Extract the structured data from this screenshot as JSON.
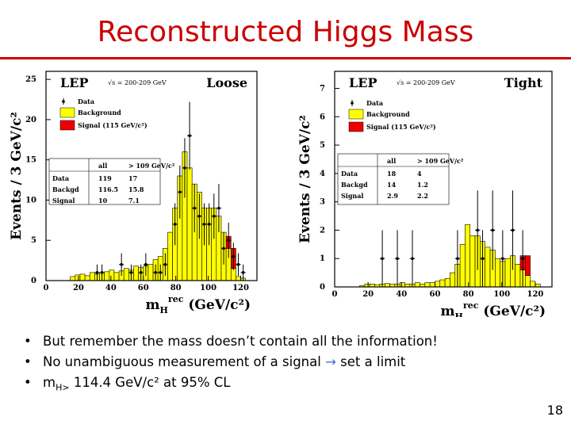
{
  "slide": {
    "title": "Reconstructed Higgs Mass",
    "page_number": "18",
    "colors": {
      "title": "#cc0000",
      "background_fill": "#ffff00",
      "signal_fill": "#ee0000",
      "arrow": "#4a6fd8"
    },
    "bullets": [
      {
        "parts": [
          "But remember the mass doesn’t contain all the information!"
        ]
      },
      {
        "parts": [
          "No unambiguous measurement of a signal ",
          "→",
          " set a limit"
        ]
      },
      {
        "parts": [
          "m",
          "H>",
          " 114.4 GeV/c² at 95% CL"
        ]
      }
    ]
  },
  "chart_data": [
    {
      "type": "histogram",
      "title": "LEP",
      "energy_label": "√s = 200-209 GeV",
      "selection": "Loose",
      "ylabel": "Events / 3 GeV/c²",
      "xlabel_main": "m",
      "xlabel_sub": "H",
      "xlabel_sup": "rec",
      "xlabel_units": "(GeV/c²)",
      "xlim": [
        0,
        130
      ],
      "ylim": [
        0,
        26
      ],
      "xticks": [
        0,
        20,
        40,
        60,
        80,
        100,
        120
      ],
      "yticks": [
        0,
        5,
        10,
        15,
        20,
        25
      ],
      "legend": [
        "Data",
        "Background",
        "Signal (115 GeV/c²)"
      ],
      "bin_width": 3,
      "bin_starts": [
        15,
        18,
        21,
        24,
        27,
        30,
        33,
        36,
        39,
        42,
        45,
        48,
        51,
        54,
        57,
        60,
        63,
        66,
        69,
        72,
        75,
        78,
        81,
        84,
        87,
        90,
        93,
        96,
        99,
        102,
        105,
        108,
        111,
        114,
        117,
        120
      ],
      "background": [
        0.5,
        0.7,
        0.8,
        0.6,
        1.0,
        0.8,
        1.0,
        1.1,
        1.3,
        1.0,
        1.2,
        1.5,
        1.3,
        1.8,
        1.6,
        1.8,
        2.0,
        2.6,
        3.0,
        4.0,
        6.0,
        9.0,
        13.0,
        16.0,
        14.0,
        12.0,
        11.0,
        9.0,
        9.0,
        9.0,
        8.0,
        6.0,
        4.0,
        1.5,
        0.5,
        0.3
      ],
      "signal": [
        0,
        0,
        0,
        0,
        0,
        0,
        0,
        0,
        0,
        0,
        0,
        0,
        0,
        0,
        0,
        0,
        0,
        0,
        0,
        0,
        0,
        0,
        0,
        0,
        0,
        0,
        0,
        0,
        0,
        0,
        0,
        0,
        1.5,
        2.5,
        0,
        0
      ],
      "data_points": [
        {
          "x": 30,
          "y": 1,
          "err": 1
        },
        {
          "x": 33,
          "y": 1,
          "err": 1
        },
        {
          "x": 45,
          "y": 2,
          "err": 1.4
        },
        {
          "x": 51,
          "y": 1,
          "err": 1
        },
        {
          "x": 57,
          "y": 1,
          "err": 1
        },
        {
          "x": 60,
          "y": 2,
          "err": 1.4
        },
        {
          "x": 66,
          "y": 1,
          "err": 1
        },
        {
          "x": 69,
          "y": 1,
          "err": 1
        },
        {
          "x": 72,
          "y": 2,
          "err": 1.4
        },
        {
          "x": 78,
          "y": 7,
          "err": 2.6
        },
        {
          "x": 81,
          "y": 11,
          "err": 3.3
        },
        {
          "x": 84,
          "y": 14,
          "err": 3.7
        },
        {
          "x": 87,
          "y": 18,
          "err": 4.2
        },
        {
          "x": 90,
          "y": 9,
          "err": 3.0
        },
        {
          "x": 93,
          "y": 8,
          "err": 2.8
        },
        {
          "x": 96,
          "y": 7,
          "err": 2.6
        },
        {
          "x": 99,
          "y": 7,
          "err": 2.6
        },
        {
          "x": 102,
          "y": 8,
          "err": 2.8
        },
        {
          "x": 105,
          "y": 9,
          "err": 3.0
        },
        {
          "x": 108,
          "y": 4,
          "err": 2.0
        },
        {
          "x": 111,
          "y": 5,
          "err": 2.2
        },
        {
          "x": 114,
          "y": 3,
          "err": 1.7
        },
        {
          "x": 117,
          "y": 2,
          "err": 1.4
        },
        {
          "x": 120,
          "y": 1,
          "err": 1
        }
      ],
      "table": {
        "headers": [
          "",
          "all",
          "> 109 GeV/c²"
        ],
        "rows": [
          [
            "Data",
            "119",
            "17"
          ],
          [
            "Backgd",
            "116.5",
            "15.8"
          ],
          [
            "Signal",
            "10",
            "7.1"
          ]
        ]
      }
    },
    {
      "type": "histogram",
      "title": "LEP",
      "energy_label": "√s = 200-209 GeV",
      "selection": "Tight",
      "ylabel": "Events / 3 GeV/c²",
      "xlabel_main": "m",
      "xlabel_sub": "H",
      "xlabel_sup": "rec",
      "xlabel_units": "(GeV/c²)",
      "xlim": [
        0,
        130
      ],
      "ylim": [
        0,
        7.6
      ],
      "xticks": [
        0,
        20,
        40,
        60,
        80,
        100,
        120
      ],
      "yticks": [
        0,
        1,
        2,
        3,
        4,
        5,
        6,
        7
      ],
      "legend": [
        "Data",
        "Background",
        "Signal (115 GeV/c²)"
      ],
      "bin_width": 3,
      "bin_starts": [
        15,
        18,
        21,
        24,
        27,
        30,
        33,
        36,
        39,
        42,
        45,
        48,
        51,
        54,
        57,
        60,
        63,
        66,
        69,
        72,
        75,
        78,
        81,
        84,
        87,
        90,
        93,
        96,
        99,
        102,
        105,
        108,
        111,
        114,
        117,
        120
      ],
      "background": [
        0.05,
        0.1,
        0.1,
        0.08,
        0.1,
        0.12,
        0.1,
        0.1,
        0.15,
        0.1,
        0.1,
        0.15,
        0.1,
        0.15,
        0.15,
        0.2,
        0.25,
        0.3,
        0.5,
        0.8,
        1.5,
        2.2,
        1.8,
        1.8,
        1.6,
        1.4,
        1.3,
        1.0,
        0.9,
        1.0,
        1.1,
        0.8,
        0.6,
        0.4,
        0.2,
        0.1
      ],
      "signal": [
        0,
        0,
        0,
        0,
        0,
        0,
        0,
        0,
        0,
        0,
        0,
        0,
        0,
        0,
        0,
        0,
        0,
        0,
        0,
        0,
        0,
        0,
        0,
        0,
        0,
        0,
        0,
        0,
        0,
        0,
        0,
        0,
        0.5,
        0.7,
        0,
        0
      ],
      "data_points": [
        {
          "x": 27,
          "y": 1,
          "err": 1
        },
        {
          "x": 36,
          "y": 1,
          "err": 1
        },
        {
          "x": 45,
          "y": 1,
          "err": 1
        },
        {
          "x": 72,
          "y": 1,
          "err": 1
        },
        {
          "x": 84,
          "y": 2,
          "err": 1.4
        },
        {
          "x": 87,
          "y": 1,
          "err": 1
        },
        {
          "x": 93,
          "y": 2,
          "err": 1.4
        },
        {
          "x": 99,
          "y": 1,
          "err": 1
        },
        {
          "x": 105,
          "y": 2,
          "err": 1.4
        },
        {
          "x": 111,
          "y": 1,
          "err": 1
        }
      ],
      "table": {
        "headers": [
          "",
          "all",
          "> 109 GeV/c²"
        ],
        "rows": [
          [
            "Data",
            "18",
            "4"
          ],
          [
            "Backgd",
            "14",
            "1.2"
          ],
          [
            "Signal",
            "2.9",
            "2.2"
          ]
        ]
      }
    }
  ]
}
